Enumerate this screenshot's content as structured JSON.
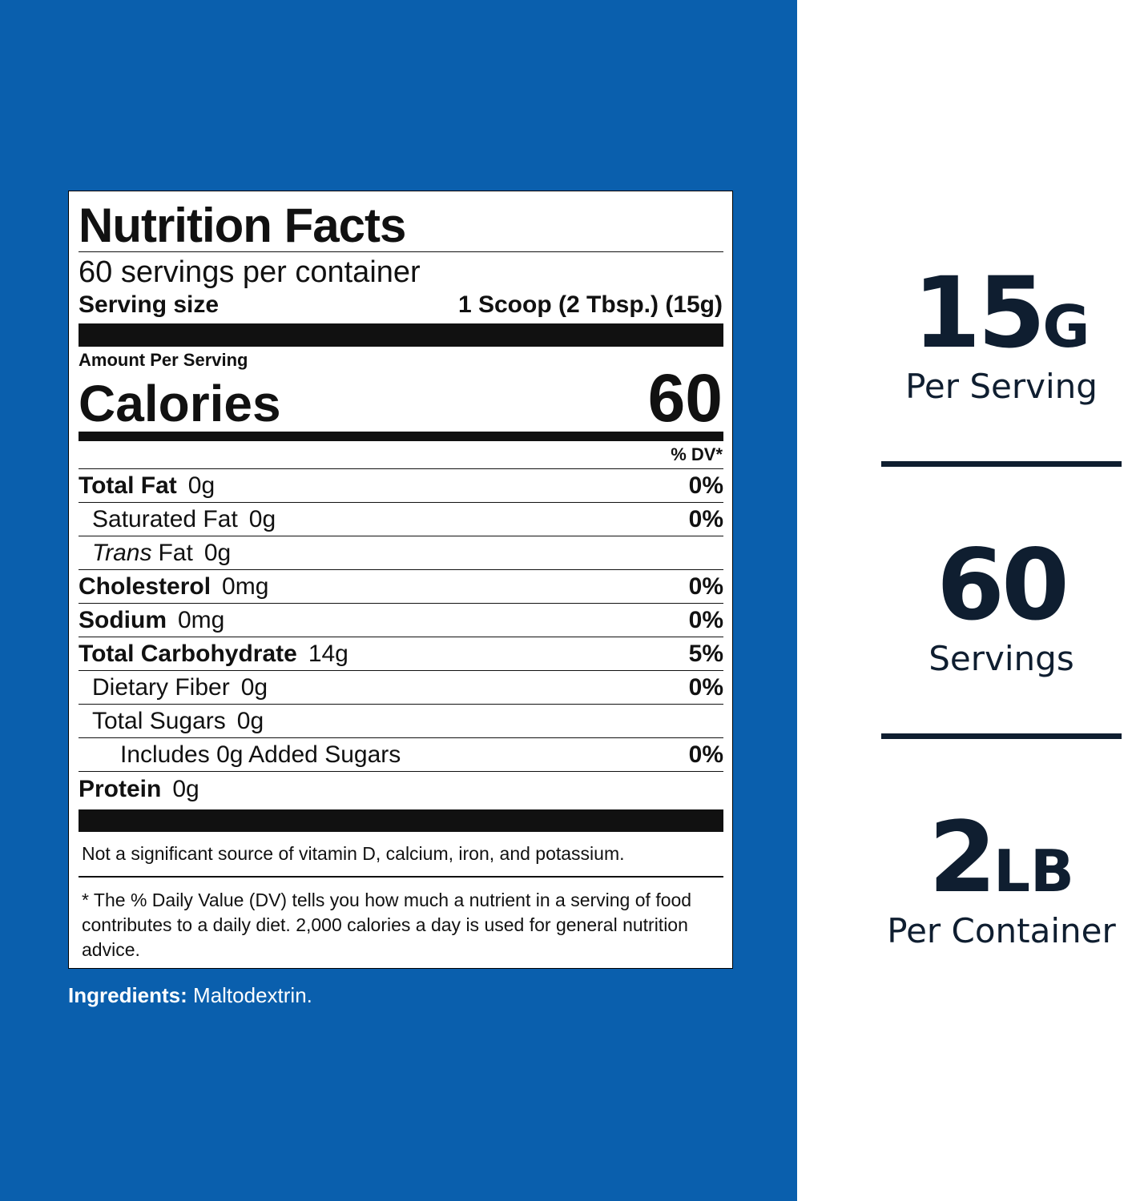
{
  "label": {
    "title": "Nutrition Facts",
    "servings": "60 servings per container",
    "serving_size_label": "Serving size",
    "serving_size_value": "1 Scoop (2 Tbsp.) (15g)",
    "amount_per_serving": "Amount Per Serving",
    "calories_label": "Calories",
    "calories_value": "60",
    "dv_header": "% DV*",
    "nutrients": [
      {
        "name": "Total Fat",
        "amount": "0g",
        "dv": "0%",
        "bold": true,
        "indent": 0
      },
      {
        "name": "Saturated Fat",
        "amount": "0g",
        "dv": "0%",
        "bold": false,
        "indent": 1
      },
      {
        "name_italic": "Trans",
        "name": "Fat",
        "amount": "0g",
        "bold": false,
        "indent": 1
      },
      {
        "name": "Cholesterol",
        "amount": "0mg",
        "dv": "0%",
        "bold": true,
        "indent": 0
      },
      {
        "name": "Sodium",
        "amount": "0mg",
        "dv": "0%",
        "bold": true,
        "indent": 0
      },
      {
        "name": "Total Carbohydrate",
        "amount": "14g",
        "dv": "5%",
        "bold": true,
        "indent": 0
      },
      {
        "name": "Dietary Fiber",
        "amount": "0g",
        "dv": "0%",
        "bold": false,
        "indent": 1
      },
      {
        "name": "Total Sugars",
        "amount": "0g",
        "bold": false,
        "indent": 1
      },
      {
        "name": "Includes 0g Added Sugars",
        "dv": "0%",
        "bold": false,
        "indent": 2
      },
      {
        "name": "Protein",
        "amount": "0g",
        "bold": true,
        "indent": 0
      }
    ],
    "not_significant": "Not a significant source of vitamin D, calcium, iron, and potassium.",
    "footnote": "* The % Daily Value (DV) tells you how much a nutrient in a serving of food contributes to a daily diet. 2,000 calories a day is used for general nutrition advice."
  },
  "ingredients": {
    "label": "Ingredients:",
    "value": "Maltodextrin."
  },
  "stats": [
    {
      "value": "15",
      "unit": "G",
      "caption": "Per Serving"
    },
    {
      "value": "60",
      "caption": "Servings"
    },
    {
      "value": "2",
      "unit": "LB",
      "caption": "Per Container"
    }
  ]
}
